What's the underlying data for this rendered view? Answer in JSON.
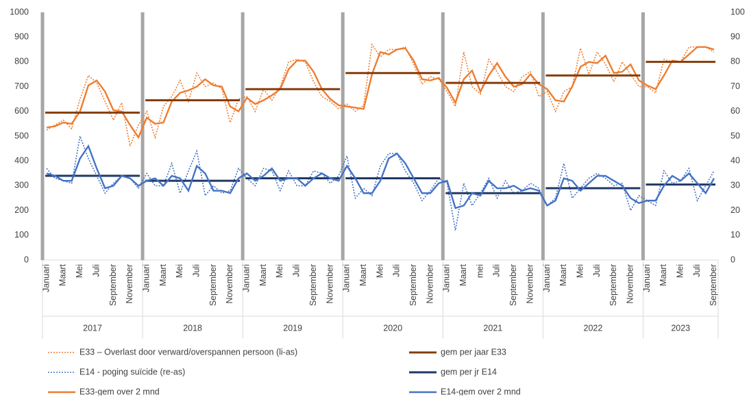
{
  "chart_data": {
    "type": "line",
    "categories": [
      "Januari",
      null,
      "Maart",
      null,
      "Mei",
      null,
      "Juli",
      null,
      "September",
      null,
      "November",
      null,
      "Januari",
      null,
      "Maart",
      null,
      "Mei",
      null,
      "Juli",
      null,
      "September",
      null,
      "November",
      null,
      "Januari",
      null,
      "Maart",
      null,
      "Mei",
      null,
      "Juli",
      null,
      "September",
      null,
      "November",
      null,
      "Januari",
      null,
      "Maart",
      null,
      "Mei",
      null,
      "Juli",
      null,
      "September",
      null,
      "November",
      null,
      "Januari",
      null,
      "Maart",
      null,
      "mei",
      null,
      "Juli",
      null,
      "September",
      null,
      "November",
      null,
      "Januari",
      null,
      "Maart",
      null,
      "Mei",
      null,
      "Juli",
      null,
      "September",
      null,
      "November",
      null,
      "Januari",
      null,
      "Maart",
      null,
      "Mei",
      null,
      "Juli",
      null,
      "September"
    ],
    "years": [
      "2017",
      "2018",
      "2019",
      "2020",
      "2021",
      "2022",
      "2023"
    ],
    "ylim": [
      0,
      1000
    ],
    "yticks": [
      0,
      100,
      200,
      300,
      400,
      500,
      600,
      700,
      800,
      900,
      1000
    ],
    "y2lim": [
      0,
      100
    ],
    "y2ticks": [
      0,
      10,
      20,
      30,
      40,
      50,
      60,
      70,
      80,
      90,
      100
    ],
    "grid": false,
    "legend_columns": 2,
    "series": [
      {
        "name": "E33 – Overlast door verward/overspannen persoon (li-as)",
        "color": "#ED7D31",
        "dash": "dotted",
        "values": [
          525,
          545,
          565,
          530,
          650,
          745,
          715,
          640,
          565,
          635,
          460,
          545,
          600,
          495,
          620,
          660,
          725,
          640,
          755,
          700,
          715,
          690,
          555,
          650,
          660,
          600,
          690,
          645,
          700,
          800,
          810,
          800,
          720,
          660,
          640,
          610,
          630,
          600,
          625,
          870,
          820,
          850,
          850,
          860,
          790,
          710,
          740,
          730,
          680,
          620,
          840,
          700,
          670,
          810,
          760,
          700,
          680,
          740,
          760,
          660,
          680,
          600,
          680,
          700,
          855,
          750,
          840,
          790,
          720,
          800,
          750,
          700,
          700,
          675,
          810,
          800,
          800,
          860,
          860,
          860,
          840
        ]
      },
      {
        "name": "E14 - poging suïcide (re-as)",
        "color": "#4472C4",
        "dash": "dotted",
        "axis": "y2",
        "values": [
          37,
          33,
          32,
          31,
          50,
          41,
          34,
          27,
          31,
          34,
          33,
          29,
          35,
          30,
          30,
          39,
          27,
          36,
          44,
          26,
          30,
          27,
          28,
          37,
          33,
          30,
          37,
          36,
          28,
          36,
          30,
          30,
          36,
          35,
          31,
          34,
          42,
          25,
          29,
          26,
          38,
          43,
          43,
          36,
          31,
          24,
          28,
          33,
          31,
          12,
          31,
          22,
          27,
          33,
          25,
          32,
          27,
          28,
          31,
          29,
          22,
          25,
          39,
          25,
          29,
          33,
          35,
          33,
          30,
          31,
          20,
          26,
          24,
          22,
          36,
          31,
          32,
          37,
          24,
          30,
          36
        ]
      },
      {
        "name": "E33-gem over 2 mnd",
        "color": "#ED7D31",
        "dash": "solid",
        "values": [
          535,
          540,
          555,
          550,
          600,
          705,
          725,
          680,
          605,
          600,
          545,
          495,
          575,
          550,
          555,
          640,
          675,
          685,
          700,
          730,
          705,
          700,
          620,
          600,
          655,
          630,
          645,
          665,
          690,
          770,
          805,
          805,
          760,
          690,
          650,
          625,
          620,
          615,
          610,
          750,
          840,
          830,
          850,
          855,
          805,
          730,
          725,
          735,
          695,
          635,
          730,
          765,
          680,
          745,
          795,
          740,
          700,
          710,
          750,
          710,
          690,
          645,
          640,
          700,
          780,
          800,
          795,
          825,
          755,
          760,
          790,
          725,
          705,
          690,
          745,
          805,
          800,
          830,
          860,
          860,
          850
        ]
      },
      {
        "name": "gem per jaar E33",
        "color": "#843C0C",
        "dash": "year",
        "values": [
          595,
          595,
          595,
          595,
          595,
          595,
          595,
          595,
          595,
          595,
          595,
          595,
          645,
          645,
          645,
          645,
          645,
          645,
          645,
          645,
          645,
          645,
          645,
          645,
          690,
          690,
          690,
          690,
          690,
          690,
          690,
          690,
          690,
          690,
          690,
          690,
          755,
          755,
          755,
          755,
          755,
          755,
          755,
          755,
          755,
          755,
          755,
          755,
          715,
          715,
          715,
          715,
          715,
          715,
          715,
          715,
          715,
          715,
          715,
          715,
          745,
          745,
          745,
          745,
          745,
          745,
          745,
          745,
          745,
          745,
          745,
          745,
          800,
          800,
          800,
          800,
          800,
          800,
          800,
          800,
          800
        ]
      },
      {
        "name": "gem per jr E14",
        "color": "#1F3864",
        "dash": "year",
        "axis": "y2",
        "values": [
          34,
          34,
          34,
          34,
          34,
          34,
          34,
          34,
          34,
          34,
          34,
          34,
          32,
          32,
          32,
          32,
          32,
          32,
          32,
          32,
          32,
          32,
          32,
          32,
          33,
          33,
          33,
          33,
          33,
          33,
          33,
          33,
          33,
          33,
          33,
          33,
          33,
          33,
          33,
          33,
          33,
          33,
          33,
          33,
          33,
          33,
          33,
          33,
          27,
          27,
          27,
          27,
          27,
          27,
          27,
          27,
          27,
          27,
          27,
          27,
          29,
          29,
          29,
          29,
          29,
          29,
          29,
          29,
          29,
          29,
          29,
          29,
          30.5,
          30.5,
          30.5,
          30.5,
          30.5,
          30.5,
          30.5,
          30.5,
          30.5
        ]
      },
      {
        "name": "E14-gem over 2 mnd",
        "color": "#4472C4",
        "dash": "solid",
        "axis": "y2",
        "values": [
          35,
          34,
          32,
          32,
          41,
          46,
          37,
          29,
          30,
          34,
          33,
          30,
          32,
          33,
          30,
          34,
          33,
          28,
          38,
          35,
          28,
          28,
          27,
          33,
          35,
          32,
          34,
          37,
          32,
          33,
          33,
          30,
          33,
          35,
          33,
          32,
          38,
          33,
          27,
          27,
          32,
          41,
          43,
          39,
          33,
          27,
          27,
          31,
          32,
          21,
          22,
          27,
          26,
          32,
          29,
          29,
          30,
          28,
          29,
          28,
          22,
          24,
          33,
          32,
          28,
          31,
          34,
          34,
          32,
          30,
          25,
          23,
          24,
          24,
          30,
          34,
          32,
          35,
          31,
          27,
          33
        ]
      }
    ]
  }
}
